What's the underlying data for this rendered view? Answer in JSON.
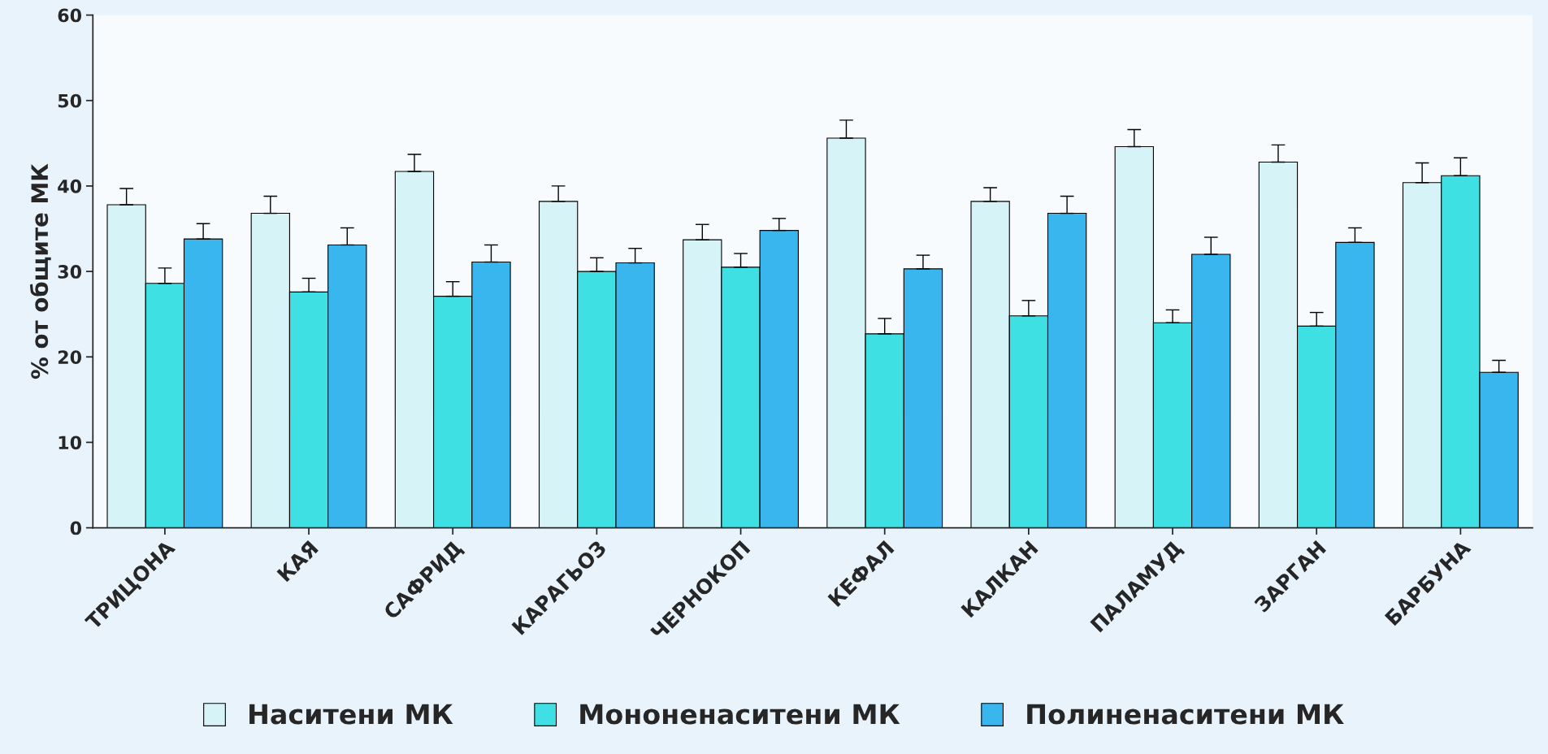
{
  "chart_data": {
    "type": "bar",
    "ylabel": "% от общите МК",
    "categories": [
      "ТРИЦОНА",
      "КАЯ",
      "САФРИД",
      "КАРАГЬОЗ",
      "ЧЕРНОКОП",
      "КЕФАЛ",
      "КАЛКАН",
      "ПАЛАМУД",
      "ЗАРГАН",
      "БАРБУНА"
    ],
    "series": [
      {
        "name": "Наситени МК",
        "color": "#d6f3f7",
        "values": [
          37.8,
          36.8,
          41.7,
          38.2,
          33.7,
          45.6,
          38.2,
          44.6,
          42.8,
          40.4
        ],
        "errors": [
          [
            37.8,
            39.7
          ],
          [
            36.8,
            38.8
          ],
          [
            41.7,
            43.7
          ],
          [
            38.2,
            40.0
          ],
          [
            33.7,
            35.5
          ],
          [
            45.6,
            47.7
          ],
          [
            38.2,
            39.8
          ],
          [
            44.6,
            46.6
          ],
          [
            42.8,
            44.8
          ],
          [
            40.4,
            42.7
          ]
        ]
      },
      {
        "name": "Мононенаситени МК",
        "color": "#3fe0e3",
        "values": [
          28.6,
          27.6,
          27.1,
          30.0,
          30.5,
          22.7,
          24.8,
          24.0,
          23.6,
          41.2
        ],
        "errors": [
          [
            28.6,
            30.4
          ],
          [
            27.6,
            29.2
          ],
          [
            27.1,
            28.8
          ],
          [
            30.0,
            31.6
          ],
          [
            30.5,
            32.1
          ],
          [
            22.7,
            24.5
          ],
          [
            24.8,
            26.6
          ],
          [
            24.0,
            25.5
          ],
          [
            23.6,
            25.2
          ],
          [
            41.2,
            43.3
          ]
        ]
      },
      {
        "name": "Полиненаситени МК",
        "color": "#3ab6ee",
        "values": [
          33.8,
          33.1,
          31.1,
          31.0,
          34.8,
          30.3,
          36.8,
          32.0,
          33.4,
          18.2
        ],
        "errors": [
          [
            33.8,
            35.6
          ],
          [
            33.1,
            35.1
          ],
          [
            31.1,
            33.1
          ],
          [
            31.0,
            32.7
          ],
          [
            34.8,
            36.2
          ],
          [
            30.3,
            31.9
          ],
          [
            36.8,
            38.8
          ],
          [
            32.0,
            34.0
          ],
          [
            33.4,
            35.1
          ],
          [
            18.2,
            19.6
          ]
        ]
      }
    ],
    "ylim": [
      0,
      60
    ],
    "yticks": [
      0,
      10,
      20,
      30,
      40,
      50,
      60
    ],
    "grid": false,
    "legend": "bottom"
  }
}
